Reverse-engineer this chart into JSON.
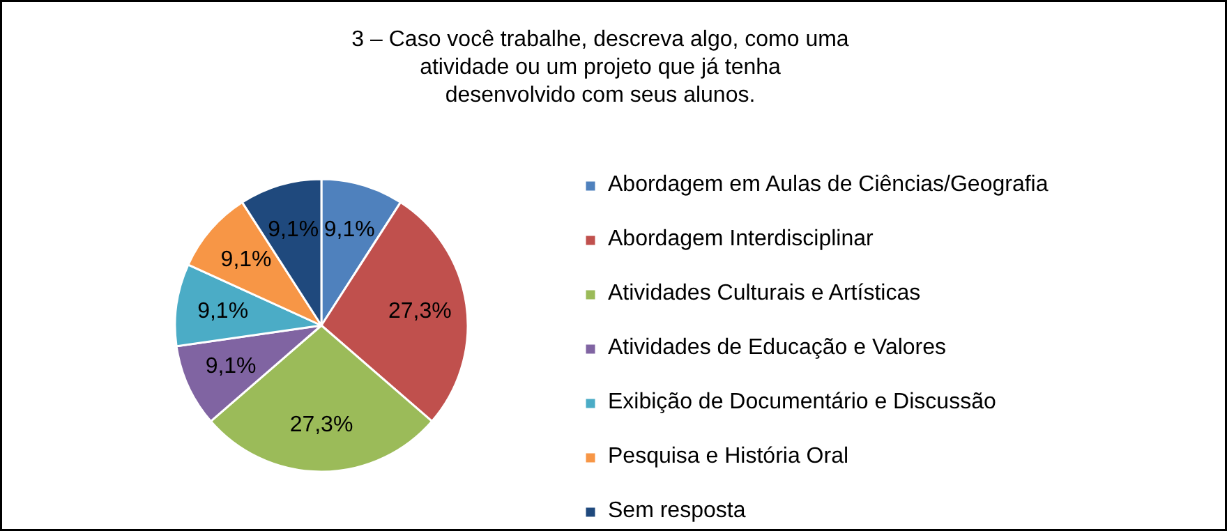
{
  "chart_data": {
    "type": "pie",
    "title": "3 – Caso você trabalhe, descreva algo, como uma atividade ou um projeto que já tenha desenvolvido com seus alunos.",
    "categories": [
      "Abordagem em Aulas de Ciências/Geografia",
      "Abordagem Interdisciplinar",
      "Atividades Culturais e Artísticas",
      "Atividades de Educação e Valores",
      "Exibição de Documentário e Discussão",
      "Pesquisa e História Oral",
      "Sem resposta"
    ],
    "values": [
      9.1,
      27.3,
      27.3,
      9.1,
      9.1,
      9.1,
      9.1
    ],
    "colors": [
      "#4f81bd",
      "#c0504d",
      "#9bbb59",
      "#8064a2",
      "#4bacc6",
      "#f79646",
      "#1f497d"
    ],
    "value_labels": [
      "9,1%",
      "27,3%",
      "27,3%",
      "9,1%",
      "9,1%",
      "9,1%",
      "9,1%"
    ],
    "legend": "right"
  }
}
